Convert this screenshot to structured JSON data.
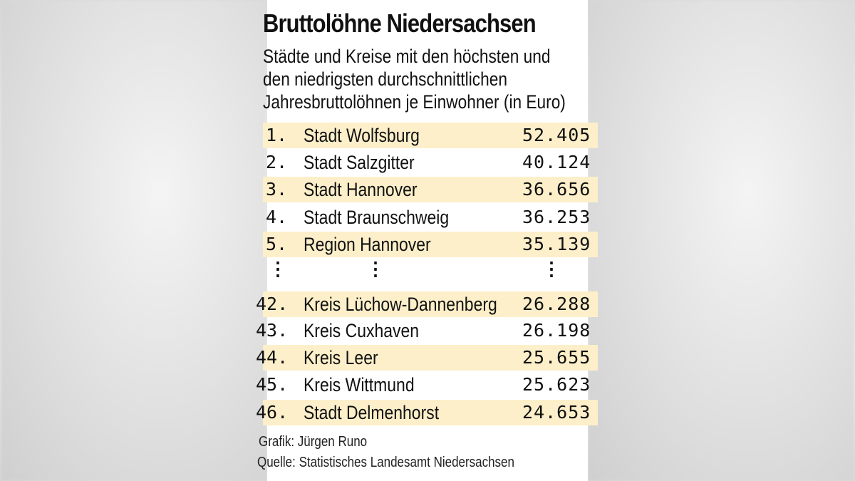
{
  "title": "Bruttolöhne Niedersachsen",
  "subtitle_lines": [
    "Städte und Kreise mit den höchsten und",
    "den niedrigsten durchschnittlichen",
    "Jahresbruttolöhnen je Einwohner (in Euro)"
  ],
  "rows": [
    {
      "rank": "1.",
      "name": "Stadt Wolfsburg",
      "value": "52.405"
    },
    {
      "rank": "2.",
      "name": "Stadt Salzgitter",
      "value": "40.124"
    },
    {
      "rank": "3.",
      "name": "Stadt Hannover",
      "value": "36.656"
    },
    {
      "rank": "4.",
      "name": "Stadt Braunschweig",
      "value": "36.253"
    },
    {
      "rank": "5.",
      "name": "Region Hannover",
      "value": "35.139"
    },
    {
      "rank": "42.",
      "name": "Kreis Lüchow-Dannenberg",
      "value": "26.288"
    },
    {
      "rank": "43.",
      "name": "Kreis Cuxhaven",
      "value": "26.198"
    },
    {
      "rank": "44.",
      "name": "Kreis Leer",
      "value": "25.655"
    },
    {
      "rank": "45.",
      "name": "Kreis Wittmund",
      "value": "25.623"
    },
    {
      "rank": "46.",
      "name": "Stadt Delmenhorst",
      "value": "24.653"
    }
  ],
  "ellipsis": "⋮",
  "footer": {
    "credit": "Grafik: Jürgen Runo",
    "source": "Quelle: Statistisches Landesamt Niedersachsen"
  },
  "colors": {
    "stripe": "#fcefc9",
    "text": "#111111"
  }
}
